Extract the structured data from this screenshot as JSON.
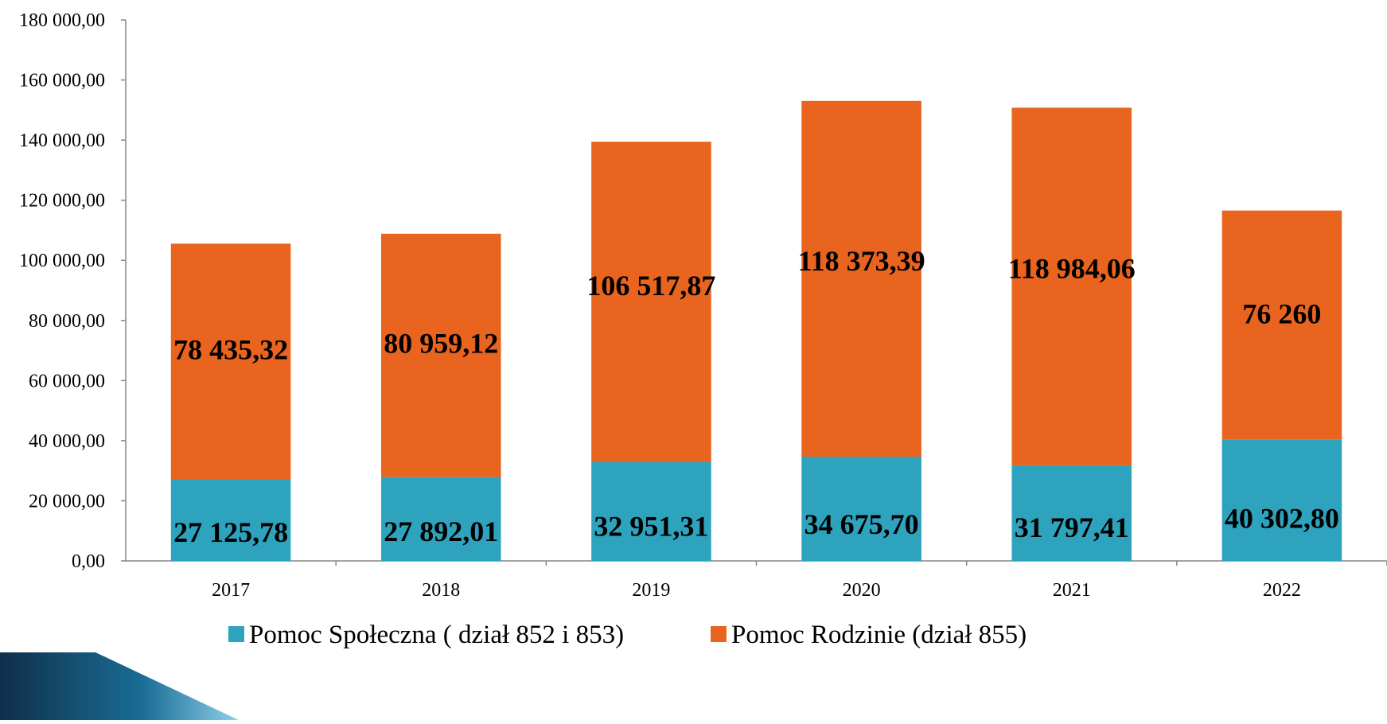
{
  "chart_data": {
    "type": "bar",
    "stacked": true,
    "title": "",
    "xlabel": "",
    "ylabel": "",
    "categories": [
      "2017",
      "2018",
      "2019",
      "2020",
      "2021",
      "2022"
    ],
    "ylim": [
      0,
      180000
    ],
    "y_ticks": [
      0,
      20000,
      40000,
      60000,
      80000,
      100000,
      120000,
      140000,
      160000,
      180000
    ],
    "y_tick_labels": [
      "0,00",
      "20 000,00",
      "40 000,00",
      "60 000,00",
      "80 000,00",
      "100 000,00",
      "120 000,00",
      "140 000,00",
      "160 000,00",
      "180 000,00"
    ],
    "grid": false,
    "legend_position": "bottom",
    "series": [
      {
        "name": "Pomoc Społeczna ( dział 852 i 853)",
        "color": "#2EA3BE",
        "values": [
          27125.78,
          27892.01,
          32951.31,
          34675.7,
          31797.41,
          40302.8
        ],
        "labels": [
          "27 125,78",
          "27 892,01",
          "32 951,31",
          "34 675,70",
          "31 797,41",
          "40 302,80"
        ]
      },
      {
        "name": "Pomoc Rodzinie (dział 855)",
        "color": "#E8641F",
        "values": [
          78435.32,
          80959.12,
          106517.87,
          118373.39,
          118984.06,
          76260
        ],
        "labels": [
          "78 435,32",
          "80 959,12",
          "106 517,87",
          "118 373,39",
          "118 984,06",
          "76 260"
        ]
      }
    ]
  },
  "decoration": {
    "corner_color_dark": "#0F2F4A",
    "corner_color_mid": "#1A6D95",
    "corner_color_light": "#8FD0EA"
  }
}
